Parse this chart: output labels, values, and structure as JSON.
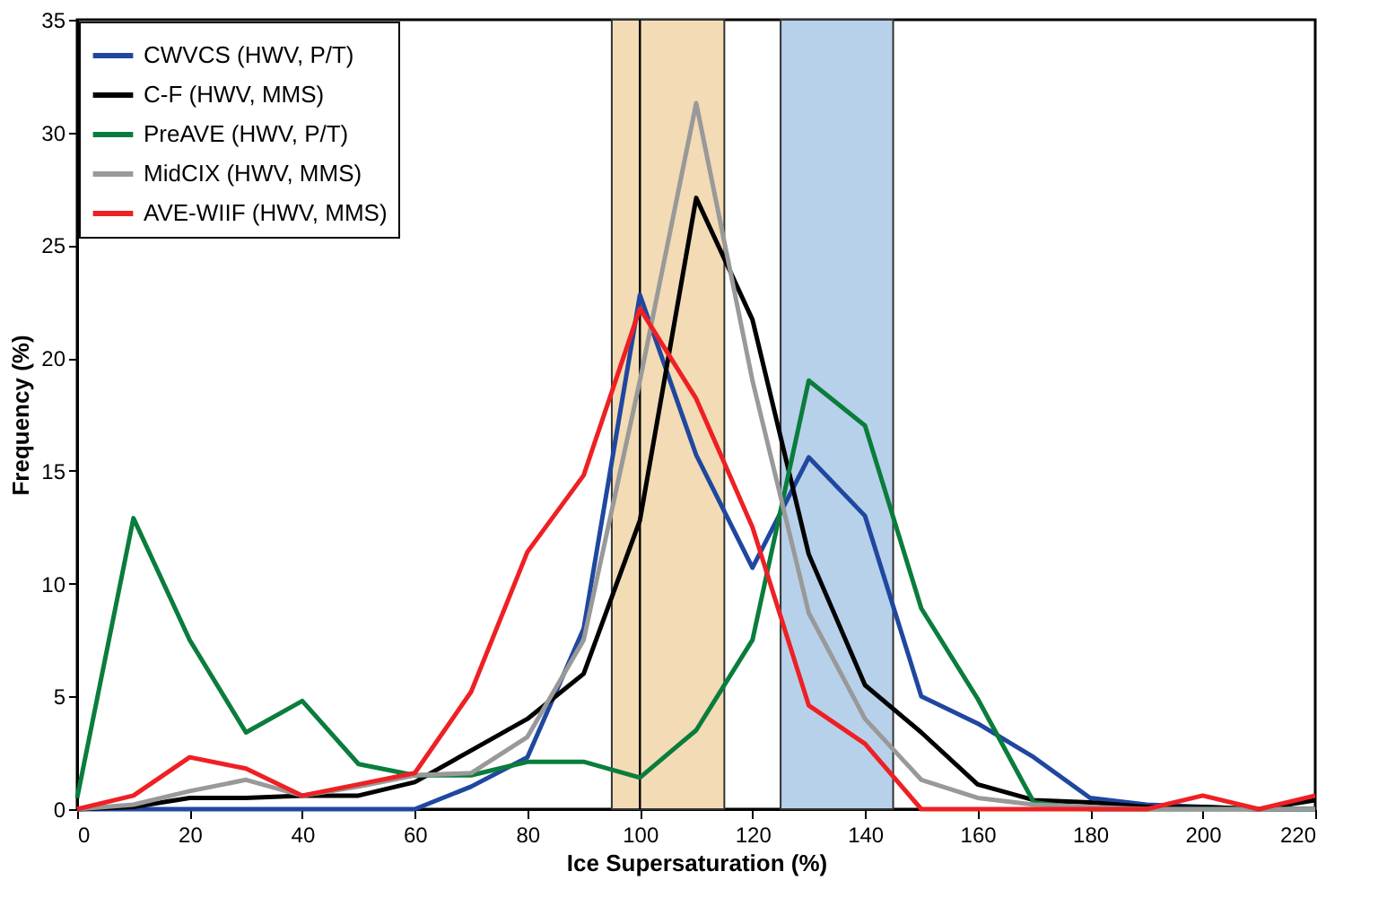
{
  "chart_data": {
    "type": "line",
    "xlabel": "Ice Supersaturation (%)",
    "ylabel": "Frequency (%)",
    "x": [
      0,
      10,
      20,
      30,
      40,
      50,
      60,
      70,
      80,
      90,
      100,
      110,
      120,
      130,
      140,
      150,
      160,
      170,
      180,
      190,
      200,
      210,
      220
    ],
    "series": [
      {
        "name": "CWVCS (HWV, P/T)",
        "color": "#2047a0",
        "values": [
          0,
          0,
          0,
          0,
          0,
          0,
          0,
          1,
          2.3,
          8,
          22.8,
          15.7,
          10.7,
          15.6,
          13,
          5,
          3.8,
          2.3,
          0.5,
          0.2,
          0.1,
          0,
          0
        ]
      },
      {
        "name": "C-F (HWV, MMS)",
        "color": "#000000",
        "values": [
          0,
          0.1,
          0.5,
          0.5,
          0.6,
          0.6,
          1.2,
          2.6,
          4,
          6,
          12.8,
          27.1,
          21.7,
          11.3,
          5.5,
          3.4,
          1.1,
          0.4,
          0.3,
          0.1,
          0.1,
          0,
          0.4
        ]
      },
      {
        "name": "PreAVE (HWV, P/T)",
        "color": "#0a7d3c",
        "values": [
          0.5,
          12.9,
          7.5,
          3.4,
          4.8,
          2,
          1.5,
          1.5,
          2.1,
          2.1,
          1.4,
          3.5,
          7.5,
          19,
          17,
          8.9,
          4.9,
          0.3,
          0,
          0,
          0,
          0,
          0
        ]
      },
      {
        "name": "MidCIX (HWV, MMS)",
        "color": "#999999",
        "values": [
          0,
          0.2,
          0.8,
          1.3,
          0.6,
          1,
          1.5,
          1.6,
          3.2,
          7.5,
          19,
          31.3,
          19,
          8.7,
          4,
          1.3,
          0.5,
          0.2,
          0.1,
          0,
          0,
          0,
          0
        ]
      },
      {
        "name": "AVE-WIIF (HWV, MMS)",
        "color": "#ee2024",
        "values": [
          0,
          0.6,
          2.3,
          1.8,
          0.6,
          1.1,
          1.6,
          5.2,
          11.4,
          14.8,
          22.2,
          18.2,
          12.5,
          4.6,
          2.9,
          0,
          0,
          0,
          0,
          0,
          0.6,
          0,
          0.6
        ]
      }
    ],
    "bands": [
      {
        "axis": "x",
        "from": 95,
        "to": 115,
        "color": "#f2dbb5"
      },
      {
        "axis": "x",
        "from": 125,
        "to": 145,
        "color": "#b8d1ea"
      }
    ],
    "ref_lines": [
      {
        "axis": "x",
        "value": 100,
        "color": "#000000"
      }
    ],
    "xlim": [
      0,
      220
    ],
    "xticks": [
      0,
      20,
      40,
      60,
      80,
      100,
      120,
      140,
      160,
      180,
      200,
      220
    ],
    "ylim": [
      0,
      35
    ],
    "yticks": [
      0,
      5,
      10,
      15,
      20,
      25,
      30,
      35
    ],
    "grid": false,
    "legend": "top left",
    "marker": "none",
    "line_style": "solid"
  }
}
